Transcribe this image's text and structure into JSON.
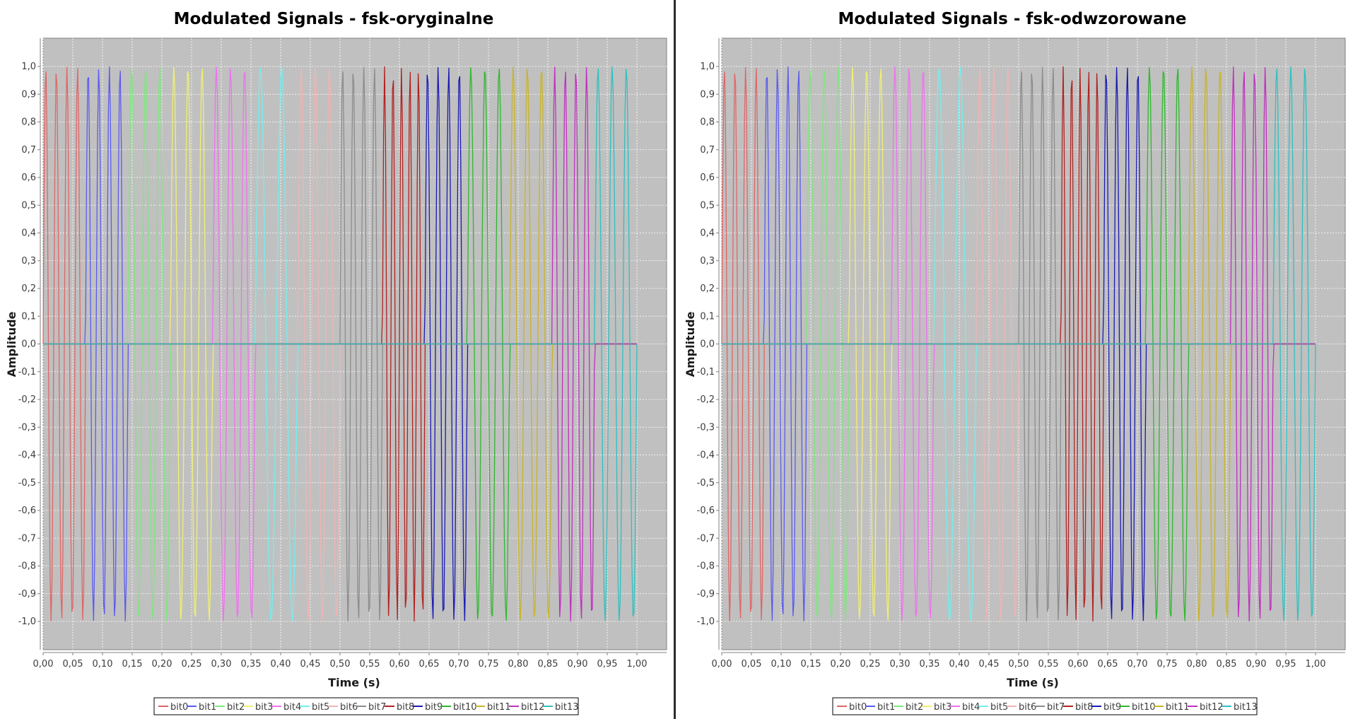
{
  "chart_data": [
    {
      "type": "line",
      "title": "Modulated Signals - fsk-oryginalne",
      "xlabel": "Time (s)",
      "ylabel": "Amplitude",
      "xlim": [
        0.0,
        1.0
      ],
      "ylim": [
        -1.0,
        1.0
      ],
      "x_ticks": [
        "0,00",
        "0,05",
        "0,10",
        "0,15",
        "0,20",
        "0,25",
        "0,30",
        "0,35",
        "0,40",
        "0,45",
        "0,50",
        "0,55",
        "0,60",
        "0,65",
        "0,70",
        "0,75",
        "0,80",
        "0,85",
        "0,90",
        "0,95",
        "1,00"
      ],
      "y_ticks": [
        "1,0",
        "0,9",
        "0,8",
        "0,7",
        "0,6",
        "0,5",
        "0,4",
        "0,3",
        "0,2",
        "0,1",
        "0,0",
        "-0,1",
        "-0,2",
        "-0,3",
        "-0,4",
        "-0,5",
        "-0,6",
        "-0,7",
        "-0,8",
        "-0,9",
        "-1,0"
      ],
      "grid": true,
      "legend_position": "bottom",
      "background": "#c0c0c0",
      "series": [
        {
          "name": "bit0",
          "color": "#e06666",
          "start": 0.0,
          "end": 0.0714,
          "cycles": 4
        },
        {
          "name": "bit1",
          "color": "#5b5bf0",
          "start": 0.0714,
          "end": 0.1429,
          "cycles": 4
        },
        {
          "name": "bit2",
          "color": "#7de87d",
          "start": 0.1429,
          "end": 0.2143,
          "cycles": 3
        },
        {
          "name": "bit3",
          "color": "#f0f070",
          "start": 0.2143,
          "end": 0.2857,
          "cycles": 3
        },
        {
          "name": "bit4",
          "color": "#f070f0",
          "start": 0.2857,
          "end": 0.3571,
          "cycles": 3
        },
        {
          "name": "bit5",
          "color": "#70f0f0",
          "start": 0.3571,
          "end": 0.4286,
          "cycles": 2
        },
        {
          "name": "bit6",
          "color": "#f0b4b4",
          "start": 0.4286,
          "end": 0.5,
          "cycles": 3
        },
        {
          "name": "bit7",
          "color": "#8c8c8c",
          "start": 0.5,
          "end": 0.5714,
          "cycles": 4
        },
        {
          "name": "bit8",
          "color": "#b22222",
          "start": 0.5714,
          "end": 0.6429,
          "cycles": 5
        },
        {
          "name": "bit9",
          "color": "#1a1ab4",
          "start": 0.6429,
          "end": 0.7143,
          "cycles": 4
        },
        {
          "name": "bit10",
          "color": "#2eb82e",
          "start": 0.7143,
          "end": 0.7857,
          "cycles": 3
        },
        {
          "name": "bit11",
          "color": "#c8b428",
          "start": 0.7857,
          "end": 0.8571,
          "cycles": 3
        },
        {
          "name": "bit12",
          "color": "#c030c0",
          "start": 0.8571,
          "end": 0.9286,
          "cycles": 4
        },
        {
          "name": "bit13",
          "color": "#2ec0c0",
          "start": 0.9286,
          "end": 1.0,
          "cycles": 3
        }
      ]
    },
    {
      "type": "line",
      "title": "Modulated Signals - fsk-odwzorowane",
      "xlabel": "Time (s)",
      "ylabel": "Amplitude",
      "xlim": [
        0.0,
        1.0
      ],
      "ylim": [
        -1.0,
        1.0
      ],
      "x_ticks": [
        "0,00",
        "0,05",
        "0,10",
        "0,15",
        "0,20",
        "0,25",
        "0,30",
        "0,35",
        "0,40",
        "0,45",
        "0,50",
        "0,55",
        "0,60",
        "0,65",
        "0,70",
        "0,75",
        "0,80",
        "0,85",
        "0,90",
        "0,95",
        "1,00"
      ],
      "y_ticks": [
        "1,0",
        "0,9",
        "0,8",
        "0,7",
        "0,6",
        "0,5",
        "0,4",
        "0,3",
        "0,2",
        "0,1",
        "0,0",
        "-0,1",
        "-0,2",
        "-0,3",
        "-0,4",
        "-0,5",
        "-0,6",
        "-0,7",
        "-0,8",
        "-0,9",
        "-1,0"
      ],
      "grid": true,
      "legend_position": "bottom",
      "background": "#c0c0c0",
      "series": [
        {
          "name": "bit0",
          "color": "#e06666",
          "start": 0.0,
          "end": 0.0714,
          "cycles": 4
        },
        {
          "name": "bit1",
          "color": "#5b5bf0",
          "start": 0.0714,
          "end": 0.1429,
          "cycles": 4
        },
        {
          "name": "bit2",
          "color": "#7de87d",
          "start": 0.1429,
          "end": 0.2143,
          "cycles": 3
        },
        {
          "name": "bit3",
          "color": "#f0f070",
          "start": 0.2143,
          "end": 0.2857,
          "cycles": 3
        },
        {
          "name": "bit4",
          "color": "#f070f0",
          "start": 0.2857,
          "end": 0.3571,
          "cycles": 3
        },
        {
          "name": "bit5",
          "color": "#70f0f0",
          "start": 0.3571,
          "end": 0.4286,
          "cycles": 2
        },
        {
          "name": "bit6",
          "color": "#f0b4b4",
          "start": 0.4286,
          "end": 0.5,
          "cycles": 3
        },
        {
          "name": "bit7",
          "color": "#8c8c8c",
          "start": 0.5,
          "end": 0.5714,
          "cycles": 4
        },
        {
          "name": "bit8",
          "color": "#b22222",
          "start": 0.5714,
          "end": 0.6429,
          "cycles": 5
        },
        {
          "name": "bit9",
          "color": "#1a1ab4",
          "start": 0.6429,
          "end": 0.7143,
          "cycles": 4
        },
        {
          "name": "bit10",
          "color": "#2eb82e",
          "start": 0.7143,
          "end": 0.7857,
          "cycles": 3
        },
        {
          "name": "bit11",
          "color": "#c8b428",
          "start": 0.7857,
          "end": 0.8571,
          "cycles": 3
        },
        {
          "name": "bit12",
          "color": "#c030c0",
          "start": 0.8571,
          "end": 0.9286,
          "cycles": 4
        },
        {
          "name": "bit13",
          "color": "#2ec0c0",
          "start": 0.9286,
          "end": 1.0,
          "cycles": 3
        }
      ]
    }
  ]
}
